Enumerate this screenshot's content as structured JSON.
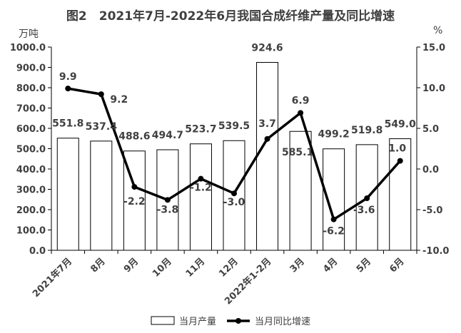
{
  "chart_data": {
    "type": "bar+line",
    "title": "图2　2021年7月-2022年6月我国合成纤维产量及同比增速",
    "categories": [
      "2021年7月",
      "8月",
      "9月",
      "10月",
      "11月",
      "12月",
      "2022年1-2月",
      "3月",
      "4月",
      "5月",
      "6月"
    ],
    "series": [
      {
        "name": "当月产量",
        "type": "bar",
        "axis": "left",
        "values": [
          551.8,
          537.4,
          488.6,
          494.7,
          523.7,
          539.5,
          924.6,
          585.1,
          499.2,
          519.8,
          549.0
        ],
        "labels": [
          "551.8",
          "537.4",
          "488.6",
          "494.7",
          "523.7",
          "539.5",
          "924.6",
          "585.1",
          "499.2",
          "519.8",
          "549.0"
        ]
      },
      {
        "name": "当月同比增速",
        "type": "line",
        "axis": "right",
        "values": [
          9.9,
          9.2,
          -2.2,
          -3.8,
          -1.2,
          -3.0,
          3.7,
          6.9,
          -6.2,
          -3.6,
          1.0
        ],
        "labels": [
          "9.9",
          "9.2",
          "-2.2",
          "-3.8",
          "-1.2",
          "-3.0",
          "3.7",
          "6.9",
          "-6.2",
          "-3.6",
          "1.0"
        ]
      }
    ],
    "y_left": {
      "unit": "万吨",
      "min": 0,
      "max": 1000,
      "ticks": [
        "0.0",
        "100.0",
        "200.0",
        "300.0",
        "400.0",
        "500.0",
        "600.0",
        "700.0",
        "800.0",
        "900.0",
        "1000.0"
      ]
    },
    "y_right": {
      "unit": "%",
      "min": -10,
      "max": 15,
      "ticks": [
        "-10.0",
        "-5.0",
        "0.0",
        "5.0",
        "10.0",
        "15.0"
      ]
    },
    "grid": false,
    "legend": {
      "position": "bottom",
      "items": [
        "当月产量",
        "当月同比增速"
      ]
    }
  }
}
